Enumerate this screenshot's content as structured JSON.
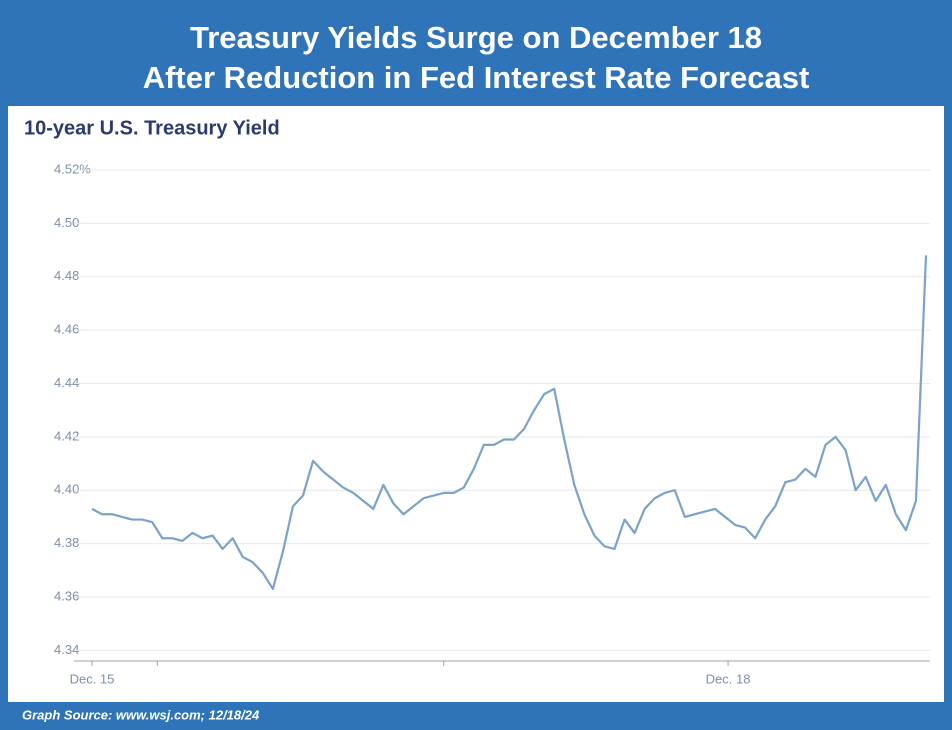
{
  "chart_data": {
    "type": "line",
    "title": [
      "Treasury Yields Surge on December 18",
      "After Reduction in Fed Interest Rate Forecast"
    ],
    "subtitle": "10-year U.S. Treasury Yield",
    "source": "Graph Source: www.wsj.com; 12/18/24",
    "color": "#7aa2cb",
    "grid": true,
    "xlim": [
      0,
      83
    ],
    "xticks": [
      {
        "value": 0,
        "label": "Dec. 15"
      },
      {
        "value": 6.5,
        "label": null
      },
      {
        "value": 35,
        "label": null
      },
      {
        "value": 63.3,
        "label": "Dec. 18"
      }
    ],
    "ylim": [
      4.336,
      4.52
    ],
    "yticks": [
      4.34,
      4.36,
      4.38,
      {
        "value": 4.4,
        "label": "4.40"
      },
      4.42,
      4.44,
      4.46,
      4.48,
      {
        "value": 4.5,
        "label": "4.50"
      },
      {
        "value": 4.52,
        "label": "4.52%"
      }
    ],
    "values": [
      4.393,
      4.391,
      4.391,
      4.39,
      4.389,
      4.389,
      4.388,
      4.382,
      4.382,
      4.381,
      4.384,
      4.382,
      4.383,
      4.378,
      4.382,
      4.375,
      4.373,
      4.369,
      4.363,
      4.377,
      4.394,
      4.398,
      4.411,
      4.407,
      4.404,
      4.401,
      4.399,
      4.396,
      4.393,
      4.402,
      4.395,
      4.391,
      4.394,
      4.397,
      4.398,
      4.399,
      4.399,
      4.401,
      4.408,
      4.417,
      4.417,
      4.419,
      4.419,
      4.423,
      4.43,
      4.436,
      4.438,
      4.419,
      4.402,
      4.391,
      4.383,
      4.379,
      4.378,
      4.389,
      4.384,
      4.393,
      4.397,
      4.399,
      4.4,
      4.39,
      4.391,
      4.392,
      4.393,
      4.39,
      4.387,
      4.386,
      4.382,
      4.389,
      4.394,
      4.403,
      4.404,
      4.408,
      4.405,
      4.417,
      4.42,
      4.415,
      4.4,
      4.405,
      4.396,
      4.402,
      4.391,
      4.385,
      4.396,
      4.488
    ]
  }
}
